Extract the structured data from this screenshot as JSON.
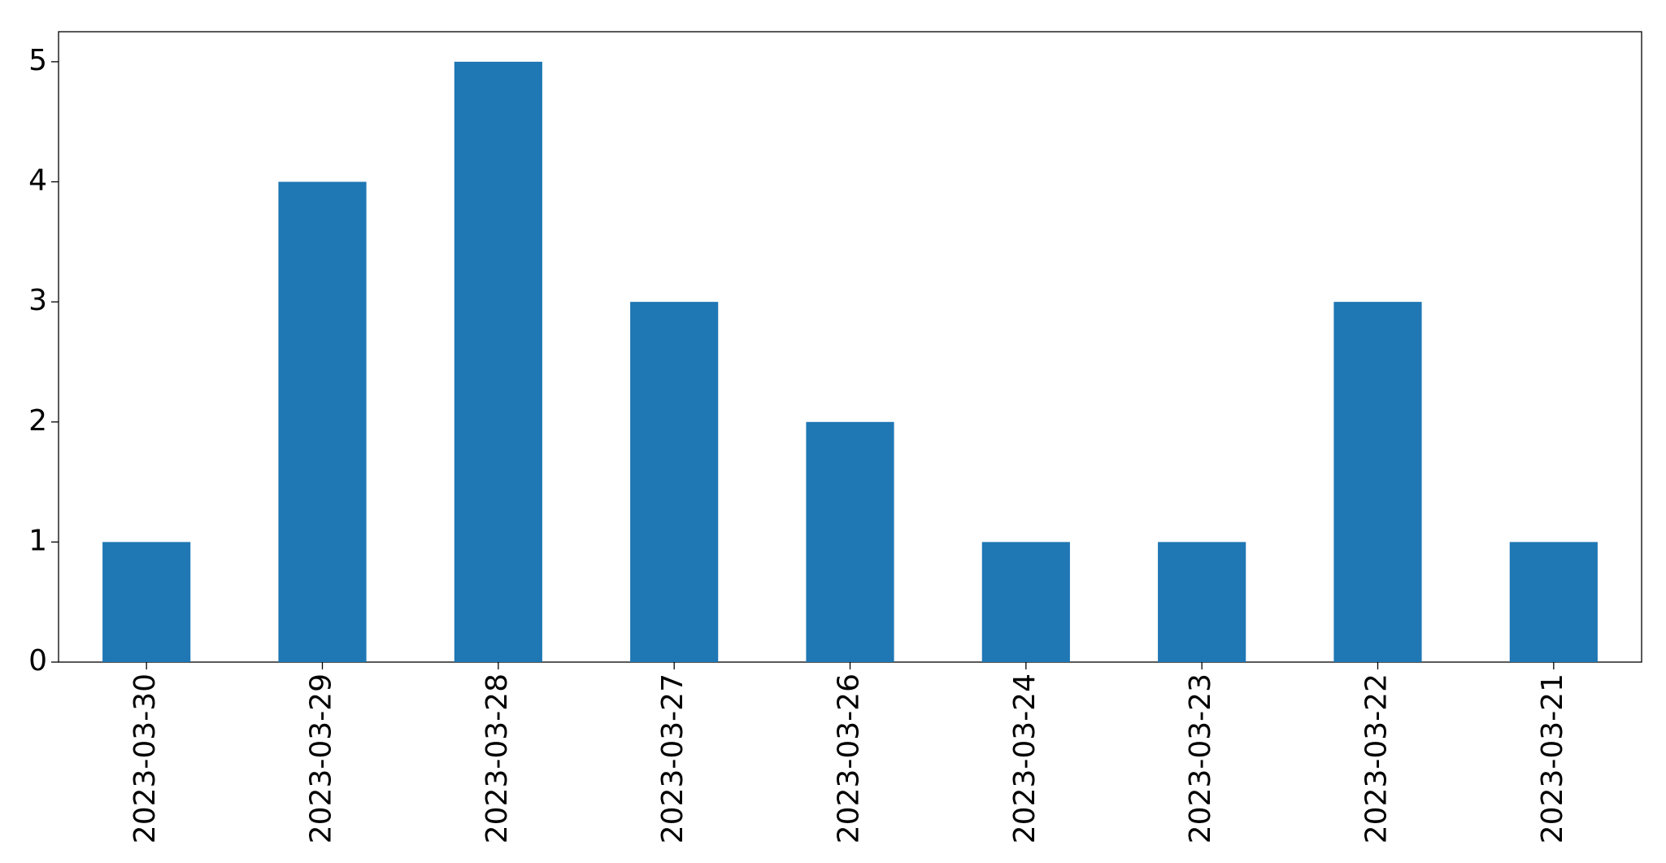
{
  "chart_data": {
    "type": "bar",
    "categories": [
      "2023-03-30",
      "2023-03-29",
      "2023-03-28",
      "2023-03-27",
      "2023-03-26",
      "2023-03-24",
      "2023-03-23",
      "2023-03-22",
      "2023-03-21"
    ],
    "values": [
      1,
      4,
      5,
      3,
      2,
      1,
      1,
      3,
      1
    ],
    "color": "#1f77b4",
    "ylim": [
      0,
      5.25
    ],
    "yticks": [
      0,
      1,
      2,
      3,
      4,
      5
    ],
    "grid": false
  }
}
